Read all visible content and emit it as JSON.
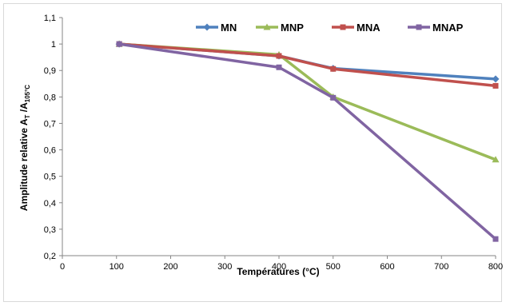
{
  "chart_data": {
    "type": "line",
    "title": "",
    "xlabel": "Températures (°C)",
    "ylabel_parts": {
      "main": "Amplitude relative  A",
      "sub1": "T",
      "mid": " /A",
      "sub2": "105°C"
    },
    "xlim": [
      0,
      800
    ],
    "ylim": [
      0.2,
      1.1
    ],
    "x_ticks": [
      0,
      100,
      200,
      300,
      400,
      500,
      600,
      700,
      800
    ],
    "x_tick_labels": [
      "0",
      "100",
      "200",
      "300",
      "400",
      "500",
      "600",
      "700",
      "800"
    ],
    "y_ticks": [
      0.2,
      0.3,
      0.4,
      0.5,
      0.6,
      0.7,
      0.8,
      0.9,
      1.0,
      1.1
    ],
    "y_tick_labels": [
      "0,2",
      "0,3",
      "0,4",
      "0,5",
      "0,6",
      "0,7",
      "0,8",
      "0,9",
      "1",
      "1,1"
    ],
    "grid": false,
    "legend_position": "top",
    "x": [
      105,
      400,
      500,
      800
    ],
    "series": [
      {
        "name": "MN",
        "color": "#4f81bd",
        "marker": "diamond",
        "values": [
          1.0,
          0.955,
          0.908,
          0.868
        ]
      },
      {
        "name": "MNP",
        "color": "#9bbb59",
        "marker": "triangle",
        "values": [
          1.0,
          0.96,
          0.8,
          0.563
        ]
      },
      {
        "name": "MNA",
        "color": "#c0504d",
        "marker": "square",
        "values": [
          1.0,
          0.955,
          0.906,
          0.842
        ]
      },
      {
        "name": "MNAP",
        "color": "#8064a2",
        "marker": "square",
        "values": [
          1.0,
          0.912,
          0.797,
          0.263
        ]
      }
    ]
  }
}
